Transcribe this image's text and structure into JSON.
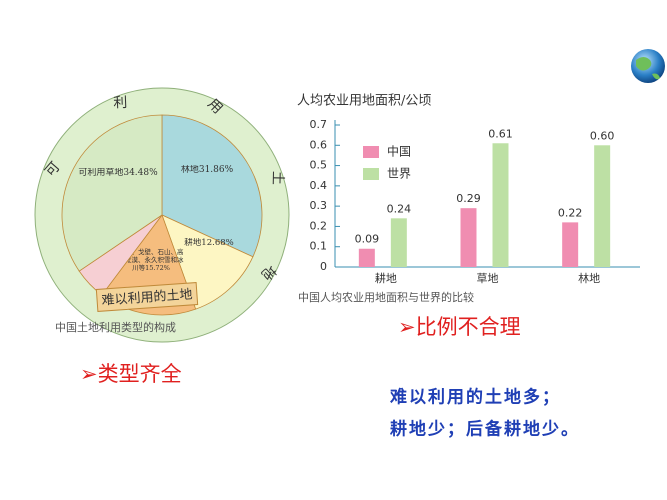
{
  "chart_data": [
    {
      "type": "pie",
      "categories": [
        "林地",
        "耕地",
        "沙漠、戈壁、石山、高寒荒漠、永久积雪和冰川等",
        "工矿、交通、城市用地和内陆水域等",
        "可利用草地"
      ],
      "values": [
        31.86,
        12.68,
        15.72,
        5.26,
        34.48
      ],
      "value_labels": [
        "31.86%",
        "12.68%",
        "15.72%",
        "5.26%",
        "34.48%"
      ],
      "colors": [
        "#a9d9dd",
        "#fdf6c3",
        "#f5bd7e",
        "#f6cfd3",
        "#d6eac4"
      ],
      "ring_label": "可利用土地",
      "box_label": "难以利用的土地",
      "caption": "中国土地利用类型的构成"
    },
    {
      "type": "bar",
      "title": "人均农业用地面积/公顷",
      "categories": [
        "耕地",
        "草地",
        "林地"
      ],
      "series": [
        {
          "name": "中国",
          "color": "#f08db1",
          "values": [
            0.09,
            0.29,
            0.22
          ]
        },
        {
          "name": "世界",
          "color": "#bde0a4",
          "values": [
            0.24,
            0.61,
            0.6
          ],
          "value_labels": [
            "0.24",
            "0.61",
            "0.60"
          ]
        }
      ],
      "ylim": [
        0,
        0.7
      ],
      "yticks": [
        0,
        0.1,
        0.2,
        0.3,
        0.4,
        0.5,
        0.6,
        0.7
      ],
      "legend": "top-left",
      "caption": "中国人均农业用地面积与世界的比较"
    }
  ],
  "slide": {
    "points": [
      "类型齐全",
      "比例不合理"
    ],
    "notes": [
      "难以利用的土地多；",
      "耕地少；后备耕地少。"
    ]
  }
}
